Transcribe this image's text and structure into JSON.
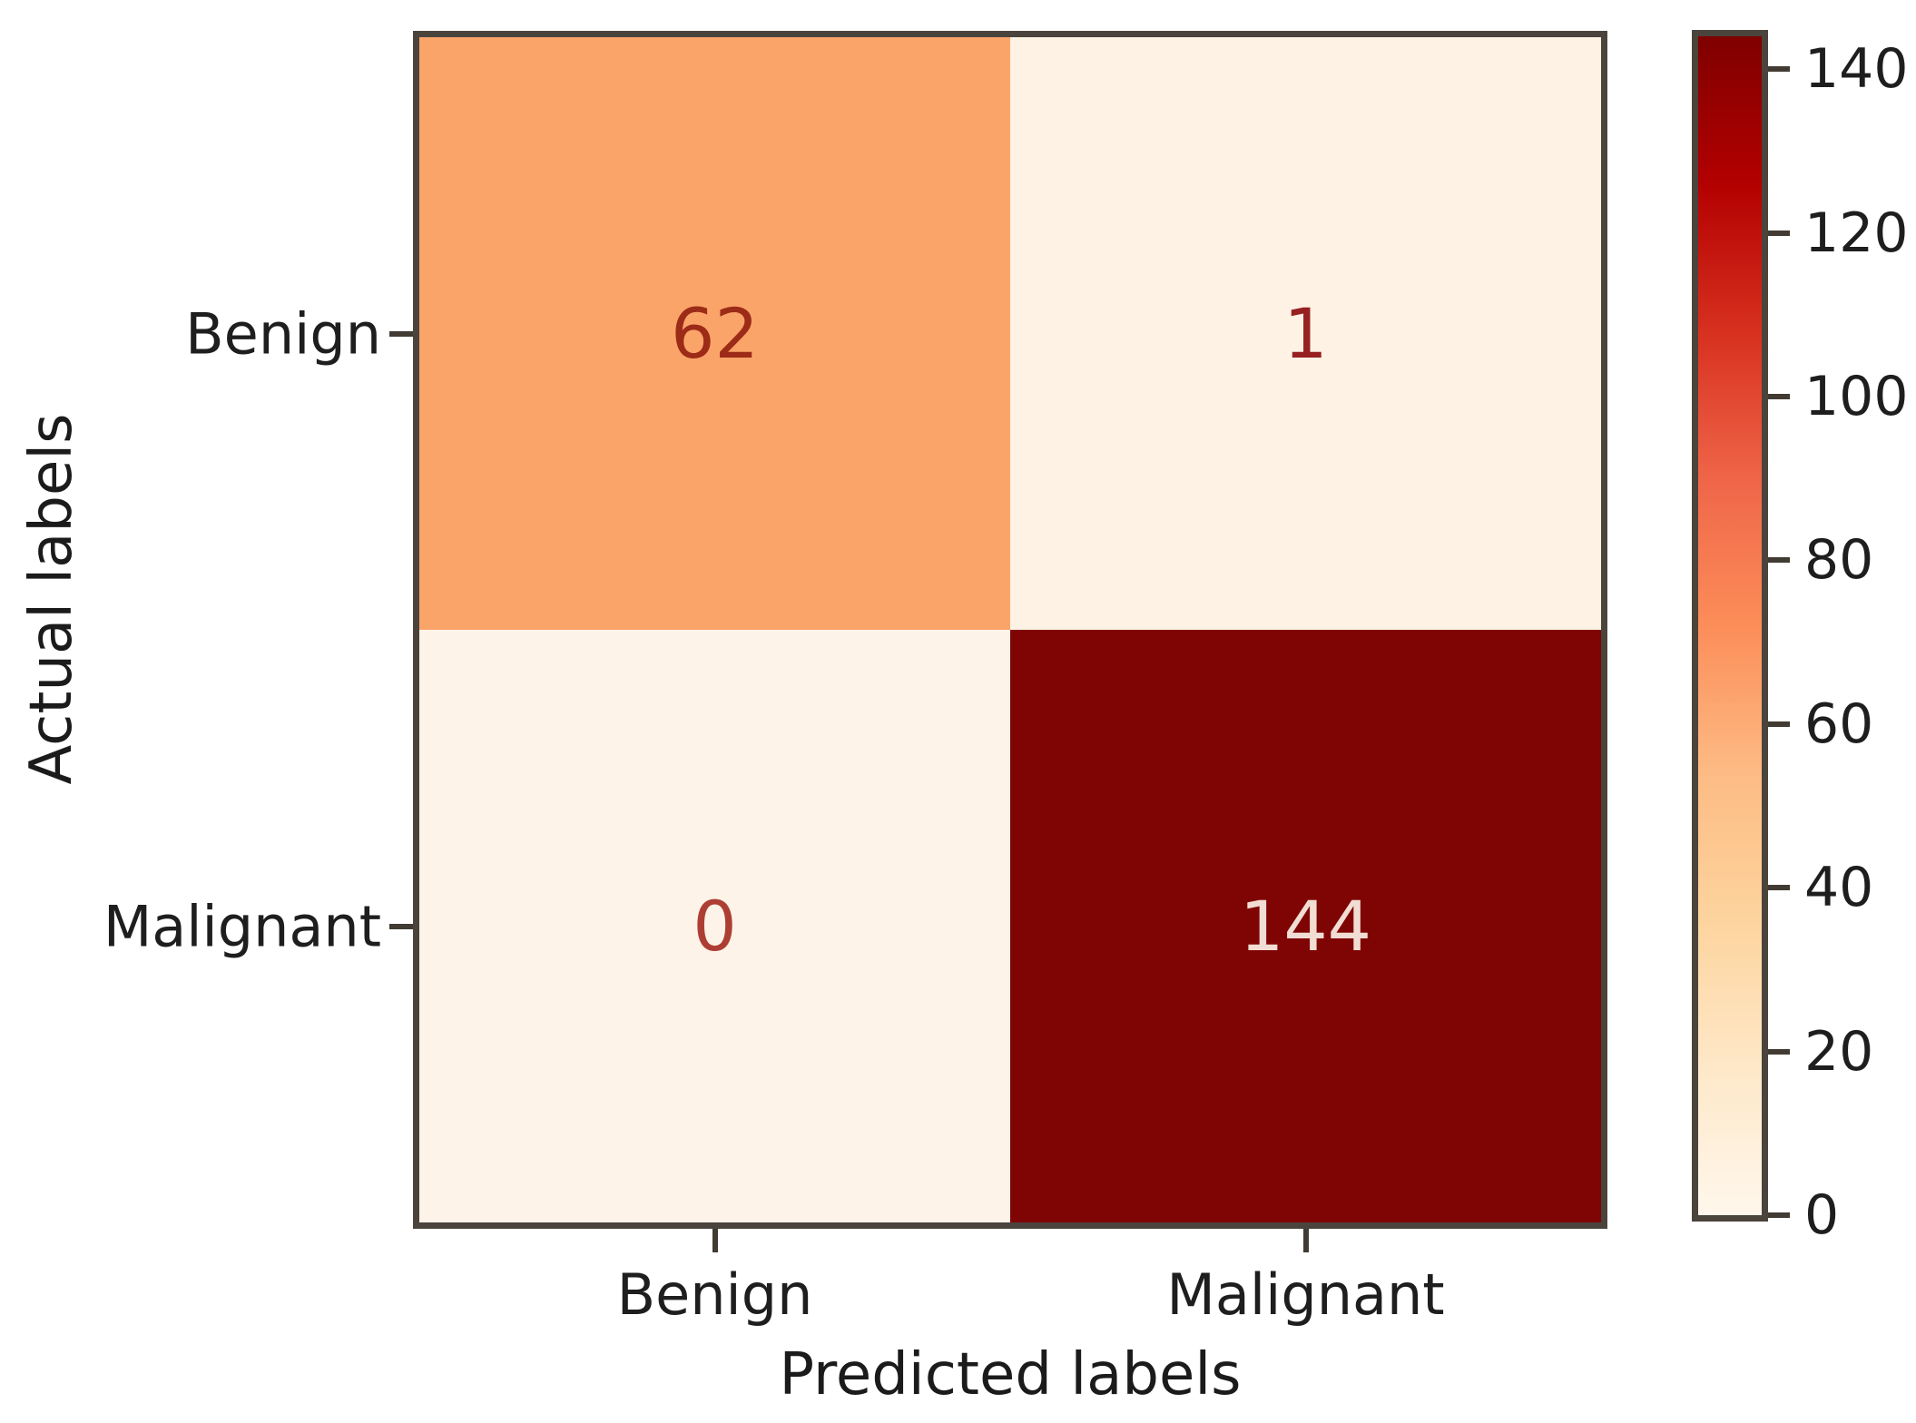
{
  "figure": {
    "background": "#ffffff",
    "spine_color": "#4a443c",
    "tick_color": "#413b33",
    "label_color": "#1e1e1e"
  },
  "chart_data": {
    "type": "heatmap",
    "title": "",
    "xlabel": "Predicted labels",
    "ylabel": "Actual labels",
    "x_categories": [
      "Benign",
      "Malignant"
    ],
    "y_categories": [
      "Benign",
      "Malignant"
    ],
    "matrix": [
      [
        62,
        1
      ],
      [
        0,
        144
      ]
    ],
    "cells": [
      {
        "row": "Benign",
        "col": "Benign",
        "value": "62",
        "bg": "#fba469",
        "text_color": "#9c2b17"
      },
      {
        "row": "Benign",
        "col": "Malignant",
        "value": "1",
        "bg": "#fdf2e4",
        "text_color": "#972020"
      },
      {
        "row": "Malignant",
        "col": "Benign",
        "value": "0",
        "bg": "#fdf3e8",
        "text_color": "#ad3e34"
      },
      {
        "row": "Malignant",
        "col": "Malignant",
        "value": "144",
        "bg": "#7f0505",
        "text_color": "#f1ddd3"
      }
    ],
    "colormap": {
      "name": "OrRd",
      "stops": [
        "#fff7ec",
        "#fee8c8",
        "#fdd49e",
        "#fdbb84",
        "#fc8d59",
        "#ef6548",
        "#d7301f",
        "#b30000",
        "#7f0000"
      ]
    },
    "colorbar": {
      "min": 0,
      "max": 144,
      "ticks": [
        0,
        20,
        40,
        60,
        80,
        100,
        120,
        140
      ]
    },
    "grid": false,
    "legend_position": "none"
  }
}
